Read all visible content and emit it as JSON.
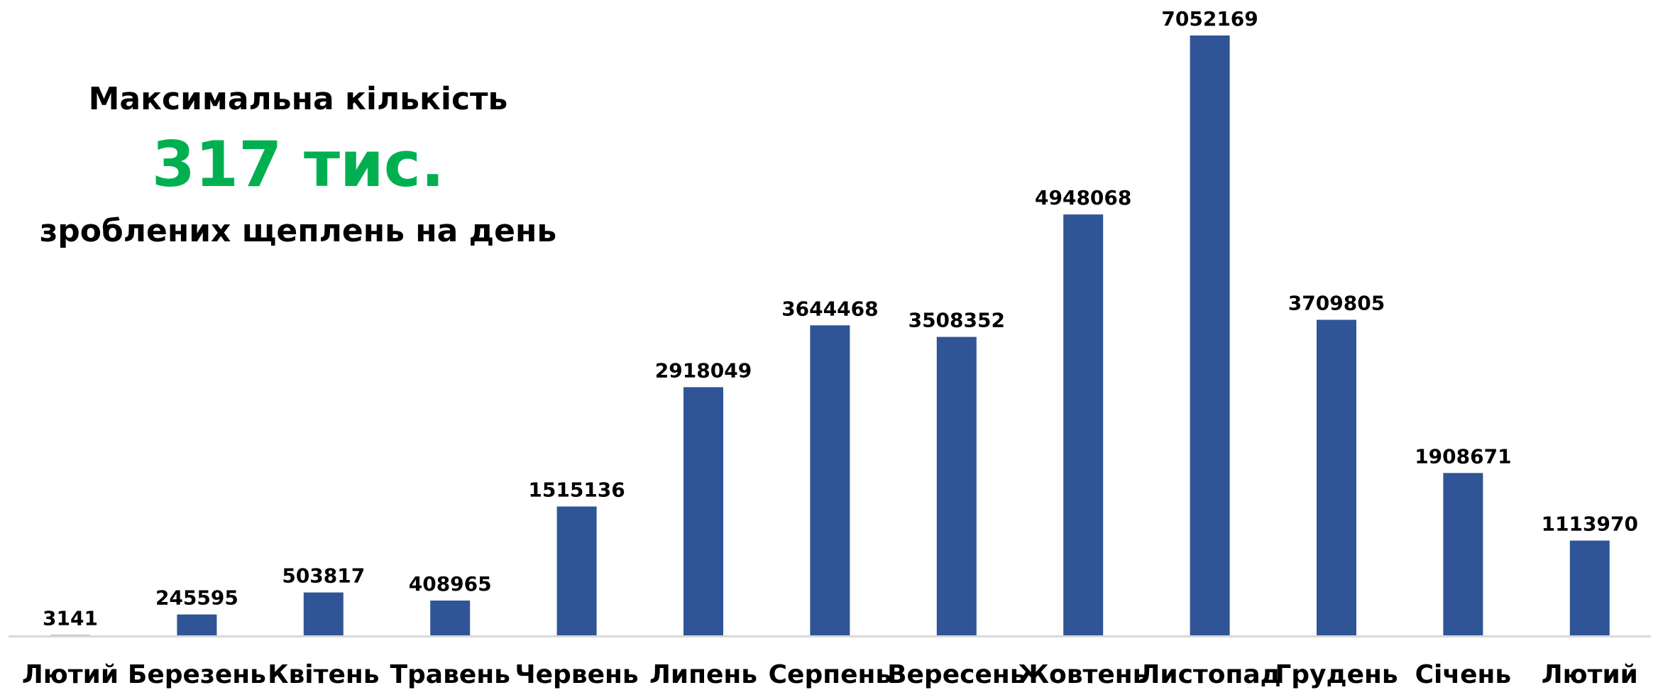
{
  "annotation": {
    "line1": "Максимальна кількість",
    "highlight": "317 тис.",
    "line3": "зроблених щеплень на день",
    "highlight_color": "#00B050"
  },
  "colors": {
    "bar": "#2F5597",
    "axis": "#D9D9D9",
    "text": "#000000"
  },
  "chart_data": {
    "type": "bar",
    "title": "",
    "xlabel": "",
    "ylabel": "",
    "categories": [
      "Лютий",
      "Березень",
      "Квітень",
      "Травень",
      "Червень",
      "Липень",
      "Серпень",
      "Вересень",
      "Жовтень",
      "Листопад",
      "Грудень",
      "Січень",
      "Лютий"
    ],
    "values": [
      3141,
      245595,
      503817,
      408965,
      1515136,
      2918049,
      3644468,
      3508352,
      4948068,
      7052169,
      3709805,
      1908671,
      1113970
    ],
    "ylim": [
      0,
      7052169
    ],
    "grid": false,
    "legend": "none",
    "data_labels": true
  }
}
